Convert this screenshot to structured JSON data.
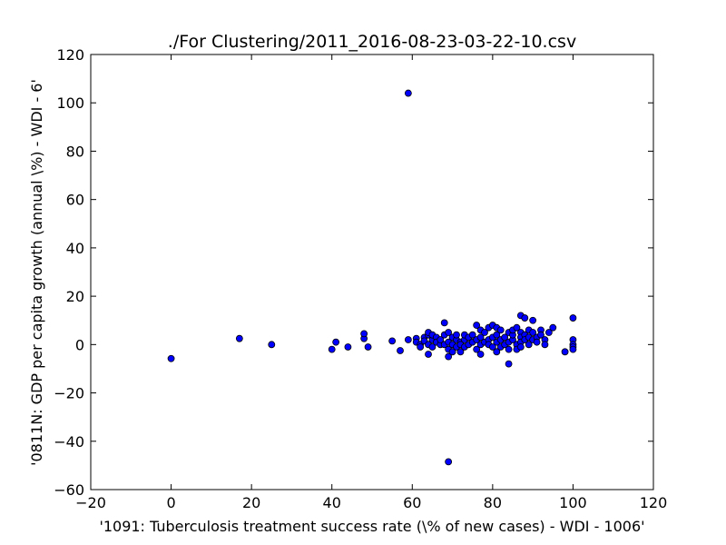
{
  "chart_data": {
    "type": "scatter",
    "title": "./For Clustering/2011_2016-08-23-03-22-10.csv",
    "xlabel": "'1091: Tuberculosis treatment success rate  (\\% of new cases) - WDI - 1006'",
    "ylabel": "'0811N: GDP per capita growth  (annual \\%) - WDI - 6'",
    "xlim": [
      -20,
      120
    ],
    "ylim": [
      -60,
      120
    ],
    "xticks": [
      -20,
      0,
      20,
      40,
      60,
      80,
      100,
      120
    ],
    "yticks": [
      -60,
      -40,
      -20,
      0,
      20,
      40,
      60,
      80,
      100,
      120
    ],
    "grid": false,
    "marker_color": "#0000ff",
    "points": [
      [
        0,
        -5.8
      ],
      [
        17,
        2.5
      ],
      [
        25,
        0
      ],
      [
        40,
        -2
      ],
      [
        41,
        1
      ],
      [
        44,
        -1
      ],
      [
        48,
        2.5
      ],
      [
        48,
        4.5
      ],
      [
        49,
        -1
      ],
      [
        55,
        1.5
      ],
      [
        57,
        -2.5
      ],
      [
        59,
        104
      ],
      [
        59,
        2
      ],
      [
        61,
        2.5
      ],
      [
        61,
        1
      ],
      [
        62,
        0
      ],
      [
        62,
        -1
      ],
      [
        63,
        3
      ],
      [
        63,
        1.5
      ],
      [
        64,
        4
      ],
      [
        64,
        5
      ],
      [
        64,
        0
      ],
      [
        64,
        -4
      ],
      [
        65,
        2
      ],
      [
        65,
        4
      ],
      [
        65,
        -1
      ],
      [
        66,
        3
      ],
      [
        66,
        1
      ],
      [
        67,
        0
      ],
      [
        67,
        2
      ],
      [
        68,
        0
      ],
      [
        68,
        9
      ],
      [
        68,
        4
      ],
      [
        69,
        5
      ],
      [
        69,
        1
      ],
      [
        69,
        -2
      ],
      [
        69,
        -5
      ],
      [
        69,
        -48.5
      ],
      [
        70,
        3
      ],
      [
        70,
        0
      ],
      [
        70,
        -3
      ],
      [
        71,
        2
      ],
      [
        71,
        4
      ],
      [
        71,
        -1
      ],
      [
        72,
        1
      ],
      [
        72,
        0
      ],
      [
        72,
        -3
      ],
      [
        73,
        2
      ],
      [
        73,
        4
      ],
      [
        73,
        -1
      ],
      [
        74,
        0
      ],
      [
        74,
        3
      ],
      [
        75,
        1
      ],
      [
        75,
        4
      ],
      [
        76,
        2
      ],
      [
        76,
        8
      ],
      [
        76,
        -2
      ],
      [
        77,
        3
      ],
      [
        77,
        0
      ],
      [
        77,
        6
      ],
      [
        77,
        -4
      ],
      [
        78,
        1
      ],
      [
        78,
        5
      ],
      [
        79,
        2
      ],
      [
        79,
        0
      ],
      [
        79,
        7
      ],
      [
        80,
        3
      ],
      [
        80,
        -1
      ],
      [
        80,
        8
      ],
      [
        81,
        1
      ],
      [
        81,
        4
      ],
      [
        81,
        -3
      ],
      [
        81,
        7
      ],
      [
        82,
        2
      ],
      [
        82,
        -1
      ],
      [
        82,
        6
      ],
      [
        83,
        0
      ],
      [
        83,
        3
      ],
      [
        84,
        1
      ],
      [
        84,
        -2
      ],
      [
        84,
        5
      ],
      [
        84,
        -8
      ],
      [
        85,
        2
      ],
      [
        85,
        4
      ],
      [
        85,
        6
      ],
      [
        86,
        0
      ],
      [
        86,
        -2
      ],
      [
        86,
        7
      ],
      [
        87,
        12
      ],
      [
        87,
        5
      ],
      [
        87,
        3
      ],
      [
        87,
        1
      ],
      [
        87,
        -1
      ],
      [
        88,
        4
      ],
      [
        88,
        2
      ],
      [
        88,
        11
      ],
      [
        89,
        6
      ],
      [
        89,
        0
      ],
      [
        89,
        3
      ],
      [
        90,
        2
      ],
      [
        90,
        5
      ],
      [
        90,
        10
      ],
      [
        91,
        3
      ],
      [
        91,
        1
      ],
      [
        92,
        6
      ],
      [
        92,
        4
      ],
      [
        93,
        2
      ],
      [
        93,
        0
      ],
      [
        94,
        5
      ],
      [
        95,
        7
      ],
      [
        98,
        -3
      ],
      [
        100,
        11
      ],
      [
        100,
        2
      ],
      [
        100,
        0
      ],
      [
        100,
        -1
      ],
      [
        100,
        -2
      ]
    ]
  }
}
